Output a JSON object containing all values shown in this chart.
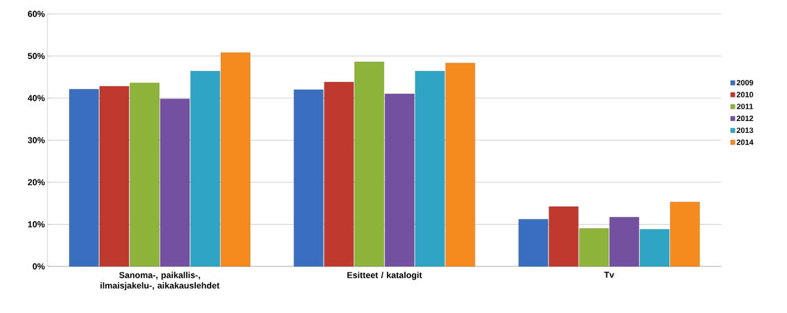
{
  "chart_data": {
    "type": "bar",
    "categories": [
      "Sanoma-, paikallis-, ilmaisjakelu-, aikakauslehdet",
      "Esitteet / katalogit",
      "Tv"
    ],
    "series": [
      {
        "name": "2009",
        "color": "#3a6fc0",
        "values": [
          42.1,
          42.0,
          11.2
        ]
      },
      {
        "name": "2010",
        "color": "#c0392f",
        "values": [
          42.8,
          43.8,
          14.2
        ]
      },
      {
        "name": "2011",
        "color": "#8db33a",
        "values": [
          43.6,
          48.6,
          9.0
        ]
      },
      {
        "name": "2012",
        "color": "#7350a0",
        "values": [
          39.8,
          41.0,
          11.7
        ]
      },
      {
        "name": "2013",
        "color": "#2fa4c4",
        "values": [
          46.4,
          46.4,
          8.8
        ]
      },
      {
        "name": "2014",
        "color": "#f58a1f",
        "values": [
          50.8,
          48.3,
          15.3
        ]
      }
    ],
    "ylim": [
      0,
      60
    ],
    "yticks": [
      {
        "value": 0,
        "label": "0%"
      },
      {
        "value": 10,
        "label": "10%"
      },
      {
        "value": 20,
        "label": "20%"
      },
      {
        "value": 30,
        "label": "30%"
      },
      {
        "value": 40,
        "label": "40%"
      },
      {
        "value": 50,
        "label": "50%"
      },
      {
        "value": 60,
        "label": "60%"
      }
    ],
    "grid": "y",
    "legend": "right"
  }
}
